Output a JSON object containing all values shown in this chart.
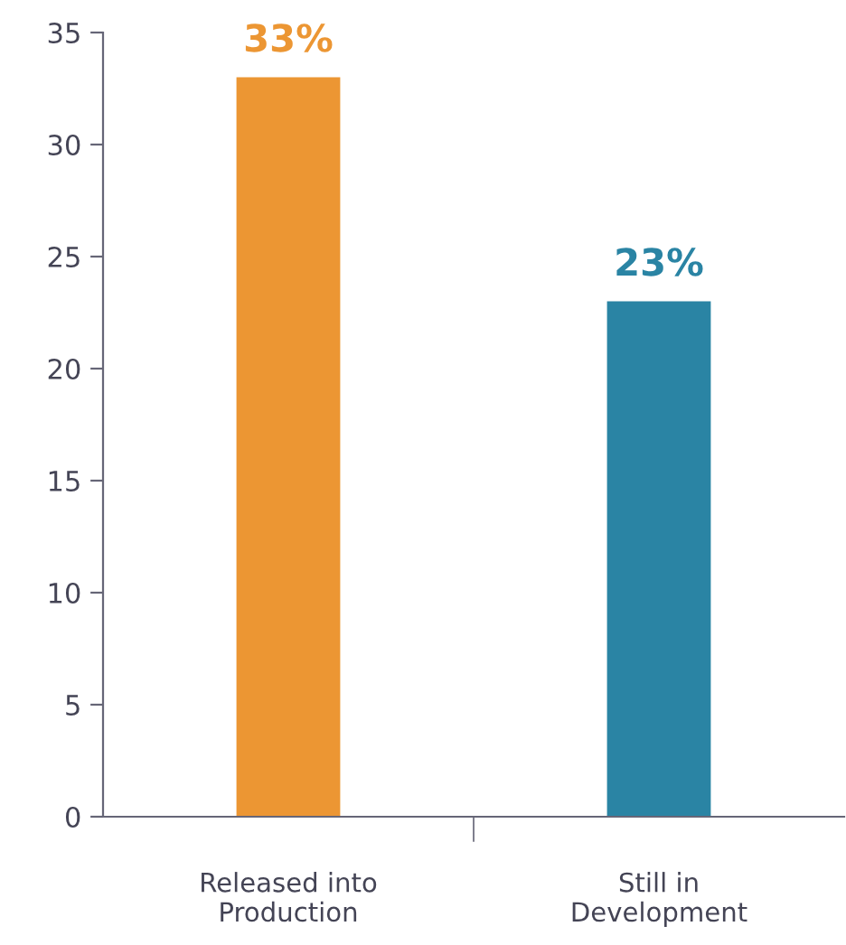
{
  "chart_data": {
    "type": "bar",
    "categories": [
      "Released into\nProduction",
      "Still in\nDevelopment"
    ],
    "values": [
      33,
      23
    ],
    "colors": [
      "#ec9633",
      "#2a84a4"
    ],
    "value_labels": [
      "33%",
      "23%"
    ],
    "ylim": [
      0,
      35
    ],
    "yticks": [
      0,
      5,
      10,
      15,
      20,
      25,
      30,
      35
    ],
    "grid": false,
    "legend": false
  }
}
